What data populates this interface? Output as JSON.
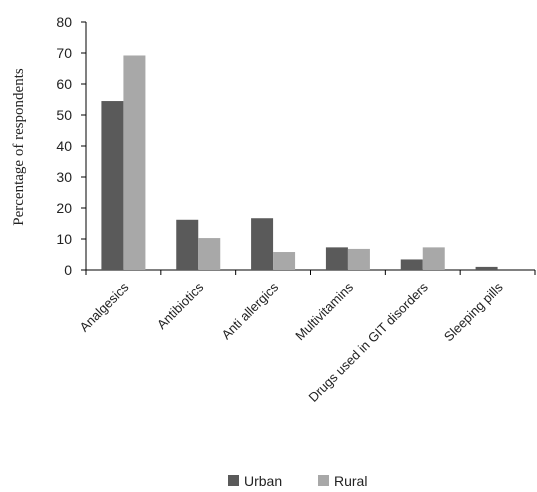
{
  "chart_data": {
    "type": "bar",
    "title": "",
    "xlabel": "",
    "ylabel": "Percentage of respondents",
    "ylim": [
      0,
      80
    ],
    "yticks": [
      0,
      10,
      20,
      30,
      40,
      50,
      60,
      70,
      80
    ],
    "categories": [
      "Analgesics",
      "Antibiotics",
      "Anti allergics",
      "Multivitamins",
      "Drugs used in GIT disorders",
      "Sleeping pills"
    ],
    "series": [
      {
        "name": "Urban",
        "color": "#5a5a5a",
        "values": [
          54.5,
          16.2,
          16.7,
          7.3,
          3.4,
          1.0
        ]
      },
      {
        "name": "Rural",
        "color": "#a8a8a8",
        "values": [
          69.2,
          10.3,
          5.8,
          6.8,
          7.3,
          0
        ]
      }
    ],
    "grid": false,
    "legend": "bottom-center"
  }
}
